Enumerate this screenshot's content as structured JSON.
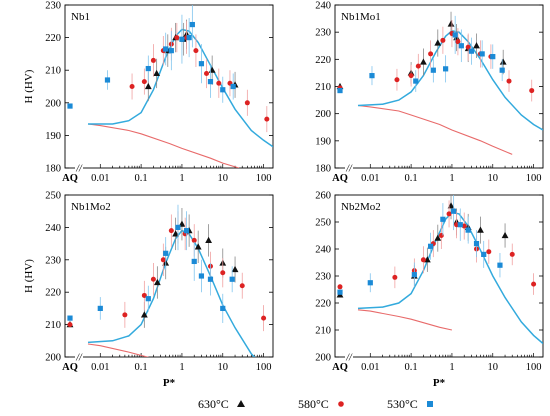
{
  "figure": {
    "ylabel": "H (HV)",
    "xlabel": "P*",
    "aq_label": "AQ",
    "axis_break": "//",
    "legend": [
      {
        "name": "630°C",
        "marker": "triangle",
        "color": "#111111"
      },
      {
        "name": "580°C",
        "marker": "circle",
        "color": "#dd2222"
      },
      {
        "name": "530°C",
        "marker": "square",
        "color": "#1b8ad6"
      }
    ],
    "colors": {
      "fit": "#33aadd",
      "lower": "#e86a6a",
      "err_red": "#f0a0a0",
      "err_blue": "#80c4ee",
      "err_black": "#888888"
    }
  },
  "chart_data": [
    {
      "type": "scatter",
      "title": "Nb1",
      "xlabel": "",
      "ylabel": "H (HV)",
      "x_scale": "log",
      "xlim": [
        0.005,
        170
      ],
      "ylim": [
        180,
        230
      ],
      "yticks": [
        180,
        190,
        200,
        210,
        220,
        230
      ],
      "xticks": [
        0.01,
        0.1,
        1,
        10,
        100
      ],
      "xtick_labels": [
        "0.01",
        "0.1",
        "1",
        "10",
        "100"
      ],
      "aq_points": [
        {
          "series": "530°C",
          "y": 199
        }
      ],
      "series": [
        {
          "name": "630°C",
          "points": [
            [
              0.15,
              205,
              4.5
            ],
            [
              0.24,
              209,
              4.5
            ],
            [
              0.45,
              216,
              5
            ],
            [
              0.7,
              220,
              4.5
            ],
            [
              1.1,
              219.5,
              5
            ],
            [
              1.3,
              221,
              4.5
            ],
            [
              5.5,
              210,
              4.5
            ],
            [
              20,
              205.5,
              4
            ]
          ]
        },
        {
          "name": "580°C",
          "points": [
            [
              0.06,
              205,
              4
            ],
            [
              0.12,
              206.5,
              4
            ],
            [
              0.2,
              213,
              5
            ],
            [
              0.35,
              216,
              4.5
            ],
            [
              0.55,
              218,
              5
            ],
            [
              0.75,
              220,
              4.5
            ],
            [
              1.3,
              220,
              5
            ],
            [
              2.2,
              216,
              5
            ],
            [
              4,
              209,
              4.5
            ],
            [
              8,
              206,
              4.5
            ],
            [
              15,
              206,
              4
            ],
            [
              40,
              200,
              4
            ],
            [
              120,
              195,
              4
            ]
          ]
        },
        {
          "name": "530°C",
          "points": [
            [
              0.015,
              207,
              3
            ],
            [
              0.15,
              210.5,
              4
            ],
            [
              0.4,
              216.5,
              5
            ],
            [
              0.55,
              216,
              6
            ],
            [
              1.0,
              219.5,
              7.5
            ],
            [
              1.5,
              220,
              6
            ],
            [
              1.8,
              224,
              7
            ],
            [
              3,
              212,
              6
            ],
            [
              5,
              206.5,
              5
            ],
            [
              10,
              204,
              4
            ],
            [
              18,
              205,
              4
            ]
          ]
        }
      ],
      "fit_curve": [
        [
          0.005,
          193.5
        ],
        [
          0.02,
          193.5
        ],
        [
          0.05,
          194.5
        ],
        [
          0.1,
          197
        ],
        [
          0.2,
          204
        ],
        [
          0.4,
          214
        ],
        [
          0.7,
          220.5
        ],
        [
          1.0,
          222.5
        ],
        [
          1.5,
          222
        ],
        [
          2.5,
          218.5
        ],
        [
          5,
          211.5
        ],
        [
          10,
          204.5
        ],
        [
          20,
          198
        ],
        [
          50,
          191.5
        ],
        [
          100,
          188.5
        ],
        [
          170,
          186.5
        ]
      ],
      "lower_curve": [
        [
          0.005,
          193.5
        ],
        [
          0.01,
          193
        ],
        [
          0.05,
          191.5
        ],
        [
          0.1,
          190.5
        ],
        [
          0.5,
          187.5
        ],
        [
          1,
          186
        ],
        [
          5,
          183
        ],
        [
          10,
          181.5
        ],
        [
          25,
          180
        ]
      ]
    },
    {
      "type": "scatter",
      "title": "Nb1Mo1",
      "xlabel": "",
      "ylabel": "",
      "x_scale": "log",
      "xlim": [
        0.005,
        170
      ],
      "ylim": [
        180,
        240
      ],
      "yticks": [
        180,
        190,
        200,
        210,
        220,
        230,
        240
      ],
      "xticks": [
        0.01,
        0.1,
        1,
        10,
        100
      ],
      "xtick_labels": [
        "0.01",
        "0.1",
        "1",
        "10",
        "100"
      ],
      "aq_points": [
        {
          "series": "630°C",
          "y": 210
        },
        {
          "series": "580°C",
          "y": 209.5
        },
        {
          "series": "530°C",
          "y": 208.5
        }
      ],
      "series": [
        {
          "name": "630°C",
          "points": [
            [
              0.1,
              215,
              4
            ],
            [
              0.2,
              219,
              5
            ],
            [
              0.45,
              226,
              5
            ],
            [
              0.95,
              233,
              4.5
            ],
            [
              1.3,
              228,
              5
            ],
            [
              2.5,
              224,
              5
            ],
            [
              4,
              225,
              4.5
            ],
            [
              18,
              219,
              4.5
            ]
          ]
        },
        {
          "name": "580°C",
          "points": [
            [
              0.045,
              212.5,
              4
            ],
            [
              0.1,
              214,
              4
            ],
            [
              0.15,
              217.5,
              4.5
            ],
            [
              0.3,
              222,
              5
            ],
            [
              0.6,
              227,
              5
            ],
            [
              1.0,
              229.5,
              5
            ],
            [
              1.4,
              226.5,
              5
            ],
            [
              2.5,
              224.5,
              5
            ],
            [
              5,
              222,
              5
            ],
            [
              9,
              221,
              4.5
            ],
            [
              25,
              212,
              4
            ],
            [
              90,
              208.5,
              4
            ]
          ]
        },
        {
          "name": "530°C",
          "points": [
            [
              0.011,
              214,
              3.5
            ],
            [
              0.13,
              212,
              4
            ],
            [
              0.35,
              216,
              4.5
            ],
            [
              0.7,
              216.5,
              5
            ],
            [
              1.2,
              229,
              7
            ],
            [
              1.7,
              225,
              6
            ],
            [
              3,
              223,
              5
            ],
            [
              5.5,
              222,
              5
            ],
            [
              10,
              221,
              4.5
            ],
            [
              17,
              216,
              4
            ]
          ]
        }
      ],
      "fit_curve": [
        [
          0.005,
          203
        ],
        [
          0.02,
          203.5
        ],
        [
          0.05,
          205
        ],
        [
          0.1,
          208
        ],
        [
          0.2,
          214
        ],
        [
          0.4,
          222.5
        ],
        [
          0.7,
          228.5
        ],
        [
          1.0,
          230.5
        ],
        [
          1.5,
          230
        ],
        [
          2.5,
          226.5
        ],
        [
          5,
          220
        ],
        [
          10,
          212.5
        ],
        [
          20,
          206
        ],
        [
          50,
          199.5
        ],
        [
          100,
          196
        ],
        [
          170,
          194
        ]
      ],
      "lower_curve": [
        [
          0.005,
          203
        ],
        [
          0.01,
          202.5
        ],
        [
          0.05,
          201
        ],
        [
          0.1,
          199.5
        ],
        [
          0.5,
          196
        ],
        [
          1,
          194
        ],
        [
          5,
          190
        ],
        [
          10,
          188
        ],
        [
          30,
          185
        ]
      ]
    },
    {
      "type": "scatter",
      "title": "Nb1Mo2",
      "xlabel": "P*",
      "ylabel": "H (HV)",
      "x_scale": "log",
      "xlim": [
        0.005,
        170
      ],
      "ylim": [
        200,
        250
      ],
      "yticks": [
        200,
        210,
        220,
        230,
        240,
        250
      ],
      "xticks": [
        0.01,
        0.1,
        1,
        10,
        100
      ],
      "xtick_labels": [
        "0.01",
        "0.1",
        "1",
        "10",
        "100"
      ],
      "aq_points": [
        {
          "series": "630°C",
          "y": 210
        },
        {
          "series": "580°C",
          "y": 210
        },
        {
          "series": "530°C",
          "y": 212
        }
      ],
      "series": [
        {
          "name": "630°C",
          "points": [
            [
              0.12,
              213,
              4
            ],
            [
              0.25,
              223,
              5
            ],
            [
              0.4,
              229,
              5
            ],
            [
              0.7,
              238,
              5
            ],
            [
              1.0,
              241,
              5
            ],
            [
              1.5,
              239,
              5
            ],
            [
              2.5,
              234,
              5
            ],
            [
              4.5,
              236,
              5
            ],
            [
              10,
              229,
              4.5
            ],
            [
              20,
              227,
              4
            ]
          ]
        },
        {
          "name": "580°C",
          "points": [
            [
              0.04,
              213,
              4
            ],
            [
              0.12,
              219,
              4.5
            ],
            [
              0.2,
              224,
              5
            ],
            [
              0.35,
              230,
              5
            ],
            [
              0.55,
              239,
              5
            ],
            [
              0.8,
              240,
              5
            ],
            [
              1.2,
              238,
              5
            ],
            [
              2,
              236,
              5
            ],
            [
              5,
              228,
              4.5
            ],
            [
              10,
              226,
              4.5
            ],
            [
              30,
              222,
              4
            ],
            [
              100,
              212,
              4
            ]
          ]
        },
        {
          "name": "530°C",
          "points": [
            [
              0.01,
              215,
              3.5
            ],
            [
              0.15,
              218,
              4
            ],
            [
              0.4,
              232,
              5
            ],
            [
              0.8,
              240,
              7
            ],
            [
              1.3,
              239,
              6
            ],
            [
              2,
              229.5,
              6
            ],
            [
              3,
              225,
              5
            ],
            [
              5,
              224,
              5
            ],
            [
              10,
              215,
              4.5
            ],
            [
              17,
              224,
              4
            ]
          ]
        }
      ],
      "fit_curve": [
        [
          0.005,
          204.5
        ],
        [
          0.02,
          205
        ],
        [
          0.05,
          206.5
        ],
        [
          0.1,
          210
        ],
        [
          0.2,
          218
        ],
        [
          0.4,
          229
        ],
        [
          0.7,
          236.5
        ],
        [
          1.0,
          239
        ],
        [
          1.5,
          238
        ],
        [
          2.5,
          233.5
        ],
        [
          5,
          225
        ],
        [
          10,
          216
        ],
        [
          20,
          209
        ],
        [
          50,
          201
        ],
        [
          100,
          197
        ],
        [
          170,
          195
        ]
      ],
      "lower_curve": [
        [
          0.005,
          204
        ],
        [
          0.01,
          203.5
        ],
        [
          0.05,
          201.5
        ],
        [
          0.1,
          200.5
        ],
        [
          0.2,
          199.5
        ]
      ]
    },
    {
      "type": "scatter",
      "title": "Nb2Mo2",
      "xlabel": "P*",
      "ylabel": "",
      "x_scale": "log",
      "xlim": [
        0.005,
        170
      ],
      "ylim": [
        200,
        260
      ],
      "yticks": [
        200,
        210,
        220,
        230,
        240,
        250,
        260
      ],
      "xticks": [
        0.01,
        0.1,
        1,
        10,
        100
      ],
      "xtick_labels": [
        "0.01",
        "0.1",
        "1",
        "10",
        "100"
      ],
      "aq_points": [
        {
          "series": "630°C",
          "y": 223
        },
        {
          "series": "580°C",
          "y": 226
        },
        {
          "series": "530°C",
          "y": 224
        }
      ],
      "series": [
        {
          "name": "630°C",
          "points": [
            [
              0.12,
              230,
              4
            ],
            [
              0.25,
              236,
              4.5
            ],
            [
              0.45,
              244,
              5
            ],
            [
              0.95,
              256,
              5
            ],
            [
              1.3,
              250,
              5
            ],
            [
              2.5,
              248,
              5
            ],
            [
              5,
              247,
              5
            ],
            [
              20,
              245,
              4.5
            ]
          ]
        },
        {
          "name": "580°C",
          "points": [
            [
              0.04,
              229.5,
              4
            ],
            [
              0.12,
              232,
              4.5
            ],
            [
              0.2,
              236,
              5
            ],
            [
              0.35,
              242,
              5
            ],
            [
              0.55,
              245,
              5
            ],
            [
              0.85,
              253,
              5
            ],
            [
              1.3,
              249,
              5
            ],
            [
              2,
              248.5,
              5
            ],
            [
              4,
              240,
              5
            ],
            [
              8,
              239,
              4.5
            ],
            [
              30,
              238,
              4
            ],
            [
              100,
              227,
              4
            ]
          ]
        },
        {
          "name": "530°C",
          "points": [
            [
              0.01,
              227.5,
              3.5
            ],
            [
              0.12,
              230.5,
              4.5
            ],
            [
              0.3,
              241,
              5
            ],
            [
              0.6,
              251,
              6
            ],
            [
              1.1,
              254,
              7
            ],
            [
              1.6,
              249,
              6
            ],
            [
              2.5,
              247,
              5
            ],
            [
              4,
              242,
              5
            ],
            [
              6,
              238,
              5
            ],
            [
              15,
              234,
              4.5
            ]
          ]
        }
      ],
      "fit_curve": [
        [
          0.005,
          218
        ],
        [
          0.02,
          218.5
        ],
        [
          0.05,
          220
        ],
        [
          0.1,
          223.5
        ],
        [
          0.2,
          232
        ],
        [
          0.4,
          243
        ],
        [
          0.7,
          251
        ],
        [
          1.0,
          253.5
        ],
        [
          1.5,
          253
        ],
        [
          2.5,
          248.5
        ],
        [
          5,
          239.5
        ],
        [
          10,
          230
        ],
        [
          20,
          222
        ],
        [
          50,
          213
        ],
        [
          100,
          208
        ],
        [
          170,
          205
        ]
      ],
      "lower_curve": [
        [
          0.005,
          217.5
        ],
        [
          0.01,
          217
        ],
        [
          0.05,
          215
        ],
        [
          0.1,
          214
        ],
        [
          0.5,
          211
        ],
        [
          1,
          210
        ]
      ]
    }
  ]
}
